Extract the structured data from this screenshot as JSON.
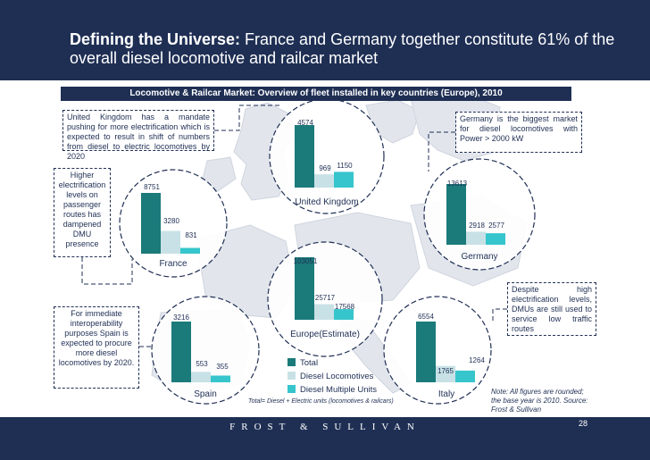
{
  "header": {
    "title_bold": "Defining the Universe:",
    "title_rest": " France and Germany together constitute 61% of the overall diesel locomotive and railcar market"
  },
  "chart_data": {
    "type": "bar",
    "title": "Locomotive & Railcar Market: Overview of fleet installed in key countries (Europe), 2010",
    "series": [
      {
        "name": "Total",
        "color": "#1b7a7a"
      },
      {
        "name": "Diesel Locomotives",
        "color": "#c8e1e6"
      },
      {
        "name": "Diesel Multiple Units",
        "color": "#36c5cc"
      }
    ],
    "countries": [
      {
        "name": "United Kingdom",
        "values": [
          4574,
          969,
          1150
        ]
      },
      {
        "name": "France",
        "values": [
          8751,
          3280,
          831
        ]
      },
      {
        "name": "Germany",
        "values": [
          13613,
          2918,
          2577
        ]
      },
      {
        "name": "Europe(Estimate)",
        "values": [
          103051,
          25717,
          17568
        ]
      },
      {
        "name": "Spain",
        "values": [
          3216,
          553,
          355
        ]
      },
      {
        "name": "Italy",
        "values": [
          6554,
          1765,
          1264
        ]
      }
    ]
  },
  "notes": {
    "uk": "United Kingdom has a mandate pushing for more electrification which is expected to result in shift of numbers from diesel to electric locomotives by 2020",
    "france": "Higher electrification levels on passenger routes has dampened DMU presence",
    "germany": "Germany is the biggest market for diesel locomotives with Power > 2000 kW",
    "italy": "Despite high electrification levels, DMUs are still used to service low traffic routes",
    "spain": "For immediate interoperability purposes Spain is expected to procure more diesel locomotives by 2020."
  },
  "total_note": "Total= Diesel + Electric units (locomotives & railcars)",
  "footnote": "Note: All figures are rounded; the base year is 2010. Source: Frost & Sullivan",
  "footer": {
    "brand": "FROST & SULLIVAN",
    "page": "28"
  }
}
